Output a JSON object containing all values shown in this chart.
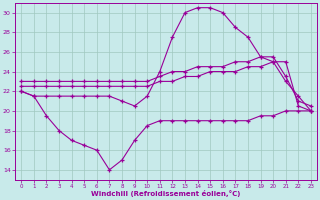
{
  "bg_color": "#c8eaea",
  "line_color": "#990099",
  "grid_color": "#a0c8c0",
  "xlabel": "Windchill (Refroidissement éolien,°C)",
  "ylim": [
    13,
    31
  ],
  "xlim": [
    -0.5,
    23.5
  ],
  "yticks": [
    14,
    16,
    18,
    20,
    22,
    24,
    26,
    28,
    30
  ],
  "xticks": [
    0,
    1,
    2,
    3,
    4,
    5,
    6,
    7,
    8,
    9,
    10,
    11,
    12,
    13,
    14,
    15,
    16,
    17,
    18,
    19,
    20,
    21,
    22,
    23
  ],
  "line1_x": [
    0,
    1,
    2,
    3,
    4,
    5,
    6,
    7,
    8,
    9,
    10,
    11,
    12,
    13,
    14,
    15,
    16,
    17,
    18,
    19,
    20,
    21,
    22,
    23
  ],
  "line1_y": [
    22.0,
    21.5,
    19.5,
    18.0,
    17.0,
    16.5,
    16.0,
    14.0,
    15.0,
    17.0,
    18.5,
    19.0,
    19.0,
    19.0,
    19.0,
    19.0,
    19.0,
    19.0,
    19.0,
    19.5,
    19.5,
    20.0,
    20.0,
    20.0
  ],
  "line2_x": [
    0,
    1,
    2,
    3,
    4,
    5,
    6,
    7,
    8,
    9,
    10,
    11,
    12,
    13,
    14,
    15,
    16,
    17,
    18,
    19,
    20,
    21,
    22,
    23
  ],
  "line2_y": [
    22.5,
    22.5,
    22.5,
    22.5,
    22.5,
    22.5,
    22.5,
    22.5,
    22.5,
    22.5,
    22.5,
    23.0,
    23.0,
    23.5,
    23.5,
    24.0,
    24.0,
    24.0,
    24.5,
    24.5,
    25.0,
    25.0,
    20.5,
    20.0
  ],
  "line3_x": [
    0,
    1,
    2,
    3,
    4,
    5,
    6,
    7,
    8,
    9,
    10,
    11,
    12,
    13,
    14,
    15,
    16,
    17,
    18,
    19,
    20,
    21,
    22,
    23
  ],
  "line3_y": [
    23.0,
    23.0,
    23.0,
    23.0,
    23.0,
    23.0,
    23.0,
    23.0,
    23.0,
    23.0,
    23.0,
    23.5,
    24.0,
    24.0,
    24.5,
    24.5,
    24.5,
    25.0,
    25.0,
    25.5,
    25.5,
    23.5,
    21.0,
    20.5
  ],
  "line4_x": [
    0,
    1,
    2,
    3,
    4,
    5,
    6,
    7,
    8,
    9,
    10,
    11,
    12,
    13,
    14,
    15,
    16,
    17,
    18,
    19,
    20,
    21,
    22,
    23
  ],
  "line4_y": [
    22.0,
    21.5,
    21.5,
    21.5,
    21.5,
    21.5,
    21.5,
    21.5,
    21.0,
    20.5,
    21.5,
    24.0,
    27.5,
    30.0,
    30.5,
    30.5,
    30.0,
    28.5,
    27.5,
    25.5,
    25.0,
    23.0,
    21.5,
    20.0
  ]
}
